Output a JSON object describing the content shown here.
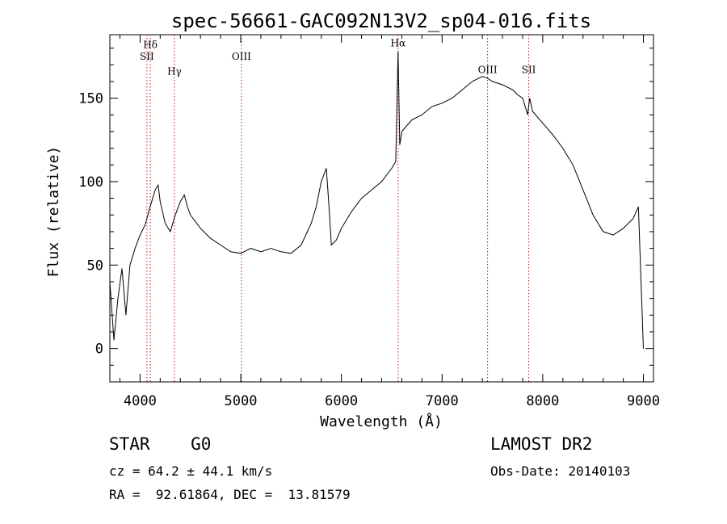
{
  "chart_data": {
    "type": "line",
    "title": "spec-56661-GAC092N13V2_sp04-016.fits",
    "xlabel": "Wavelength (Å)",
    "ylabel": "Flux (relative)",
    "xlim": [
      3700,
      9100
    ],
    "ylim": [
      -20,
      188
    ],
    "xticks": [
      4000,
      5000,
      6000,
      7000,
      8000,
      9000
    ],
    "yticks": [
      0,
      50,
      100,
      150
    ],
    "grid": false,
    "line_color": "#000000",
    "marker_color": "#b22222",
    "lines": [
      {
        "label": "Hδ",
        "x": 4102,
        "label_y": 180
      },
      {
        "label": "SII",
        "x": 4068,
        "label_y": 173
      },
      {
        "label": "Hγ",
        "x": 4341,
        "label_y": 164
      },
      {
        "label": "OIII",
        "x": 5007,
        "label_y": 173
      },
      {
        "label": "Hα",
        "x": 6563,
        "label_y": 181
      },
      {
        "label": "OIII",
        "x": 7452,
        "label_y": 165
      },
      {
        "label": "SII",
        "x": 7861,
        "label_y": 165
      }
    ],
    "x": [
      3700,
      3740,
      3780,
      3820,
      3860,
      3900,
      3950,
      4000,
      4050,
      4100,
      4150,
      4180,
      4200,
      4250,
      4300,
      4350,
      4400,
      4440,
      4470,
      4500,
      4600,
      4700,
      4800,
      4900,
      5000,
      5100,
      5200,
      5300,
      5400,
      5500,
      5600,
      5700,
      5750,
      5800,
      5850,
      5880,
      5900,
      5950,
      6000,
      6100,
      6200,
      6300,
      6400,
      6500,
      6540,
      6563,
      6580,
      6600,
      6700,
      6800,
      6900,
      7000,
      7100,
      7200,
      7300,
      7400,
      7450,
      7500,
      7600,
      7700,
      7750,
      7800,
      7850,
      7870,
      7900,
      8000,
      8100,
      8200,
      8300,
      8400,
      8500,
      8600,
      8700,
      8800,
      8900,
      8950,
      9000
    ],
    "y": [
      40,
      5,
      30,
      48,
      20,
      50,
      60,
      68,
      74,
      85,
      95,
      98,
      88,
      75,
      70,
      80,
      88,
      92,
      85,
      80,
      72,
      66,
      62,
      58,
      57,
      60,
      58,
      60,
      58,
      57,
      62,
      75,
      85,
      100,
      108,
      82,
      62,
      65,
      72,
      82,
      90,
      95,
      100,
      108,
      112,
      178,
      122,
      130,
      137,
      140,
      145,
      147,
      150,
      155,
      160,
      163,
      162,
      160,
      158,
      155,
      152,
      150,
      140,
      150,
      142,
      135,
      128,
      120,
      110,
      95,
      80,
      70,
      68,
      72,
      78,
      85,
      0
    ]
  },
  "info": {
    "class_line": "STAR    G0",
    "survey": "LAMOST DR2",
    "cz": "cz = 64.2 ± 44.1 km/s",
    "obs_date": "Obs-Date: 20140103",
    "radec": "RA =  92.61864, DEC =  13.81579"
  }
}
